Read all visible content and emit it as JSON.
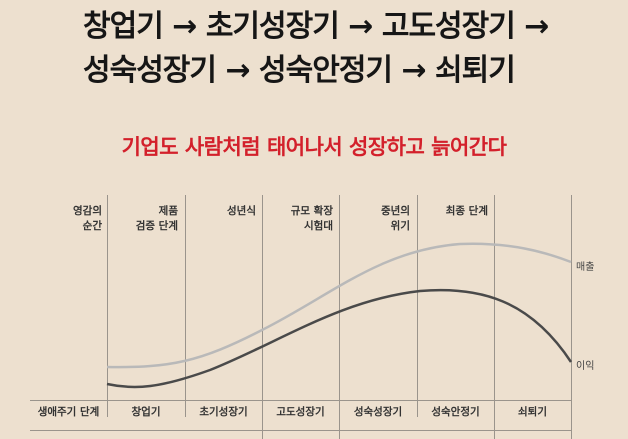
{
  "title_lines": [
    "창업기 → 초기성장기 → 고도성장기 →",
    "성숙성장기 → 성숙안정기 → 쇠퇴기"
  ],
  "subtitle": "기업도 사람처럼 태어나서 성장하고 늙어간다",
  "colors": {
    "background": "#ede0cf",
    "subtitle": "#d3202b",
    "revenue_curve": "#b9b9b9",
    "profit_curve": "#4a4a4a"
  },
  "column_headers": [
    "영감의\n순간",
    "제품\n검증 단계",
    "성년식",
    "규모 확장\n시험대",
    "중년의\n위기",
    "최종 단계",
    ""
  ],
  "row_label": "생애주기 단계",
  "stages": [
    "창업기",
    "초기성장기",
    "고도성장기",
    "성숙성장기",
    "성숙안정기",
    "쇠퇴기"
  ],
  "curves": {
    "revenue_label": "매출",
    "profit_label": "이익"
  }
}
